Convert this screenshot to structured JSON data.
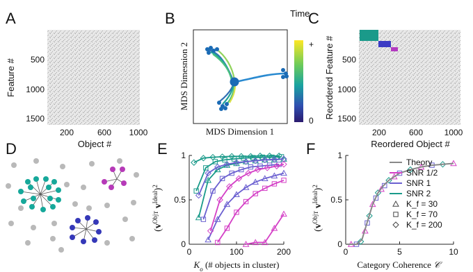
{
  "panels": {
    "A": {
      "letter": "A",
      "ylabel": "Feature #",
      "xlabel": "Object #",
      "yticks": [
        "500",
        "1000",
        "1500"
      ],
      "xticks": [
        "200",
        "600",
        "1000"
      ]
    },
    "B": {
      "letter": "B",
      "xlabel": "MDS Dimension 1",
      "ylabel": "MDS Dimesnion 2",
      "colorbar_title": "Time",
      "colorbar_top": "+",
      "colorbar_bottom": "0"
    },
    "C": {
      "letter": "C",
      "ylabel": "Reordered Feature #",
      "xlabel": "Reordered Object #",
      "yticks": [
        "500",
        "1000",
        "1500"
      ],
      "xticks": [
        "200",
        "600",
        "1000"
      ]
    },
    "D": {
      "letter": "D"
    },
    "E": {
      "letter": "E",
      "ylabel": "(v^Obj^T v^Ideal)^2",
      "xlabel": "K_o (# objects in cluster)"
    },
    "F": {
      "letter": "F",
      "ylabel": "(v^Obj^T v^Ideal)^2",
      "xlabel": "Category Coherence 𝒞"
    }
  },
  "colors": {
    "teal": "#1a9a8a",
    "purple": "#6a5fd0",
    "magenta": "#d43fc6",
    "theory": "#888888",
    "gray_node": "#b9b9b9",
    "cluster_green": "#16a89a",
    "cluster_blue": "#3538b8",
    "cluster_magenta": "#b63ab8"
  },
  "chart_data": [
    {
      "panel": "E",
      "type": "line",
      "xlabel": "K_o (# objects in cluster)",
      "ylabel": "(v^Obj^T v^Ideal)^2",
      "xlim": [
        0,
        200
      ],
      "ylim": [
        0,
        1
      ],
      "xticks": [
        0,
        100,
        200
      ],
      "yticks": [
        0,
        0.5,
        1
      ],
      "series": [
        {
          "color": "teal",
          "marker": "diamond",
          "x": [
            10,
            30,
            50,
            70,
            90,
            110,
            130,
            150,
            170,
            190
          ],
          "y": [
            0.92,
            0.97,
            0.98,
            0.985,
            0.99,
            0.99,
            0.99,
            0.995,
            0.995,
            0.995
          ]
        },
        {
          "color": "teal",
          "marker": "square",
          "x": [
            15,
            35,
            55,
            75,
            95,
            115,
            135,
            155,
            175,
            195
          ],
          "y": [
            0.6,
            0.86,
            0.93,
            0.95,
            0.96,
            0.97,
            0.975,
            0.98,
            0.98,
            0.985
          ]
        },
        {
          "color": "teal",
          "marker": "triangle",
          "x": [
            20,
            40,
            60,
            80,
            100,
            120,
            140,
            160,
            180,
            200
          ],
          "y": [
            0.3,
            0.72,
            0.84,
            0.89,
            0.91,
            0.93,
            0.94,
            0.95,
            0.95,
            0.96
          ]
        },
        {
          "color": "purple",
          "marker": "diamond",
          "x": [
            20,
            40,
            60,
            80,
            100,
            120,
            140,
            160,
            180,
            200
          ],
          "y": [
            0.55,
            0.8,
            0.87,
            0.9,
            0.92,
            0.93,
            0.94,
            0.95,
            0.955,
            0.96
          ]
        },
        {
          "color": "purple",
          "marker": "square",
          "x": [
            30,
            50,
            70,
            90,
            110,
            130,
            150,
            170,
            190
          ],
          "y": [
            0.28,
            0.6,
            0.74,
            0.8,
            0.84,
            0.87,
            0.88,
            0.89,
            0.9
          ]
        },
        {
          "color": "purple",
          "marker": "triangle",
          "x": [
            40,
            60,
            80,
            100,
            120,
            140,
            160,
            180,
            200
          ],
          "y": [
            0.05,
            0.28,
            0.45,
            0.56,
            0.64,
            0.7,
            0.74,
            0.77,
            0.8
          ]
        },
        {
          "color": "magenta",
          "marker": "diamond",
          "x": [
            45,
            65,
            85,
            105,
            125,
            145,
            165,
            185,
            200
          ],
          "y": [
            0.15,
            0.5,
            0.65,
            0.74,
            0.8,
            0.84,
            0.86,
            0.88,
            0.9
          ]
        },
        {
          "color": "magenta",
          "marker": "square",
          "x": [
            60,
            80,
            100,
            120,
            140,
            160,
            180,
            200
          ],
          "y": [
            0.02,
            0.18,
            0.36,
            0.48,
            0.57,
            0.63,
            0.68,
            0.72
          ]
        },
        {
          "color": "magenta",
          "marker": "triangle",
          "x": [
            120,
            140,
            160,
            180,
            200
          ],
          "y": [
            0.0,
            0.02,
            0.02,
            0.18,
            0.34
          ]
        }
      ]
    },
    {
      "panel": "F",
      "type": "scatter",
      "xlabel": "Category Coherence 𝒞",
      "ylabel": "(v^Obj^T v^Ideal)^2",
      "xlim": [
        0,
        10
      ],
      "ylim": [
        0,
        1
      ],
      "xticks": [
        0,
        5,
        10
      ],
      "yticks": [
        0,
        0.5,
        1
      ],
      "legend": [
        "Theory",
        "SNR 1/2",
        "SNR 1",
        "SNR 2",
        "K_f = 30",
        "K_f = 70",
        "K_f = 200"
      ],
      "legend_placement": "right, inside",
      "theory": {
        "x": [
          0,
          0.5,
          1,
          1.5,
          2,
          2.5,
          3,
          3.5,
          4,
          5,
          6,
          7,
          8,
          9,
          10
        ],
        "y": [
          0,
          0,
          0,
          0.05,
          0.25,
          0.45,
          0.58,
          0.66,
          0.72,
          0.8,
          0.84,
          0.87,
          0.89,
          0.9,
          0.91
        ]
      },
      "scatter_points": {
        "x": [
          0.5,
          1,
          1.4,
          1.8,
          2,
          2.2,
          2.5,
          2.8,
          3,
          3.3,
          3.6,
          4,
          4.5,
          5,
          6,
          7,
          8,
          9,
          10
        ],
        "y": [
          0,
          0,
          0.03,
          0.15,
          0.24,
          0.32,
          0.45,
          0.52,
          0.58,
          0.62,
          0.66,
          0.72,
          0.76,
          0.8,
          0.84,
          0.87,
          0.89,
          0.9,
          0.91
        ]
      }
    }
  ]
}
